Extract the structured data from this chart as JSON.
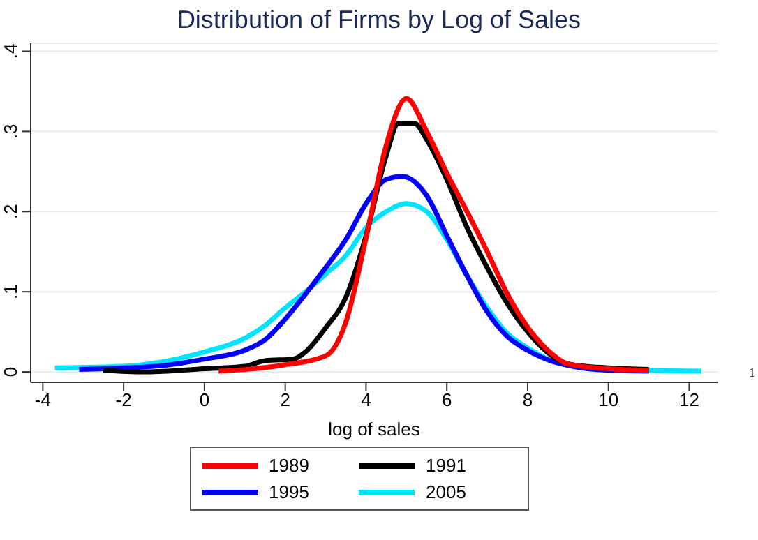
{
  "chart_data": {
    "type": "line",
    "title": "Distribution of Firms by Log of Sales",
    "xlabel": "log of sales",
    "xlim": [
      -4.3,
      12.7
    ],
    "xticks": [
      -4,
      -2,
      0,
      2,
      4,
      6,
      8,
      10,
      12
    ],
    "ylim": [
      -0.013,
      0.41
    ],
    "yticks": [
      {
        "value": 0,
        "label": "0"
      },
      {
        "value": 0.1,
        "label": ".1"
      },
      {
        "value": 0.2,
        "label": ".2"
      },
      {
        "value": 0.3,
        "label": ".3"
      },
      {
        "value": 0.4,
        "label": ".4"
      }
    ],
    "grid": "y",
    "legend": "bottom",
    "marker": "none",
    "line_style": "solid",
    "annotations": [
      "1"
    ],
    "series": [
      {
        "name": "1989",
        "color": "#ff0000",
        "x": [
          0.35,
          1,
          2,
          3,
          3.5,
          4,
          4.5,
          5,
          5.5,
          6,
          6.5,
          7,
          7.5,
          8,
          8.5,
          9,
          10,
          11
        ],
        "values": [
          0.001,
          0.003,
          0.009,
          0.02,
          0.062,
          0.167,
          0.283,
          0.341,
          0.3,
          0.248,
          0.2,
          0.15,
          0.097,
          0.056,
          0.027,
          0.01,
          0.004,
          0.002
        ]
      },
      {
        "name": "1991",
        "color": "#000000",
        "x": [
          -2.5,
          -1.5,
          0,
          1,
          1.5,
          2.2,
          2.5,
          3,
          3.5,
          4,
          4.5,
          4.8,
          5.2,
          5.5,
          6,
          6.5,
          7,
          7.5,
          8,
          8.5,
          9,
          10,
          11
        ],
        "values": [
          0.002,
          0.0,
          0.004,
          0.007,
          0.014,
          0.016,
          0.025,
          0.055,
          0.093,
          0.17,
          0.27,
          0.31,
          0.31,
          0.29,
          0.24,
          0.18,
          0.13,
          0.085,
          0.05,
          0.024,
          0.01,
          0.005,
          0.003
        ]
      },
      {
        "name": "1995",
        "color": "#0000ff",
        "x": [
          -3.1,
          -2,
          -1,
          0,
          1,
          1.5,
          2,
          2.5,
          3,
          3.5,
          4,
          4.5,
          4.9,
          5.5,
          6,
          6.5,
          7,
          7.5,
          8,
          8.5,
          9,
          10,
          11
        ],
        "values": [
          0.003,
          0.005,
          0.008,
          0.016,
          0.027,
          0.04,
          0.066,
          0.097,
          0.13,
          0.165,
          0.21,
          0.24,
          0.244,
          0.22,
          0.17,
          0.12,
          0.075,
          0.044,
          0.027,
          0.015,
          0.008,
          0.002,
          0.001
        ]
      },
      {
        "name": "2005",
        "color": "#00e5ff",
        "x": [
          -3.7,
          -2,
          -1,
          0,
          1,
          1.5,
          2,
          2.5,
          3,
          3.5,
          4,
          4.5,
          5,
          5.5,
          6,
          6.5,
          7,
          7.5,
          8,
          8.5,
          9,
          10,
          11,
          12.3
        ],
        "values": [
          0.005,
          0.007,
          0.013,
          0.025,
          0.042,
          0.058,
          0.08,
          0.1,
          0.122,
          0.145,
          0.18,
          0.2,
          0.21,
          0.2,
          0.165,
          0.12,
          0.08,
          0.048,
          0.03,
          0.016,
          0.009,
          0.004,
          0.002,
          0.001
        ]
      }
    ]
  }
}
